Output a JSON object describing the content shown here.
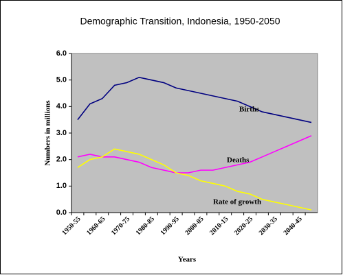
{
  "chart_data": {
    "type": "line",
    "title": "Demographic Transition, Indonesia, 1950-2050",
    "y_label": "Numbers in millions",
    "x_label": "Years",
    "categories": [
      "1950-55",
      null,
      "1960-65",
      null,
      "1970-75",
      null,
      "1980-85",
      null,
      "1990-95",
      null,
      "2000-05",
      null,
      "2010-15",
      null,
      "2020-25",
      null,
      "2030-35",
      null,
      "2040-45",
      null
    ],
    "series": [
      {
        "name": "Births",
        "color": "#000080",
        "values": [
          3.5,
          4.1,
          4.3,
          4.8,
          4.9,
          5.1,
          5.0,
          4.9,
          4.7,
          4.6,
          4.5,
          4.4,
          4.3,
          4.2,
          4.0,
          3.8,
          3.7,
          3.6,
          3.5,
          3.4
        ]
      },
      {
        "name": "Deaths",
        "color": "#ff00ff",
        "values": [
          2.1,
          2.2,
          2.1,
          2.1,
          2.0,
          1.9,
          1.7,
          1.6,
          1.5,
          1.5,
          1.6,
          1.6,
          1.7,
          1.8,
          1.9,
          2.1,
          2.3,
          2.5,
          2.7,
          2.9
        ]
      },
      {
        "name": "Rate of growth",
        "color": "#ffff00",
        "values": [
          1.7,
          2.0,
          2.1,
          2.4,
          2.3,
          2.2,
          2.0,
          1.8,
          1.5,
          1.4,
          1.2,
          1.1,
          1.0,
          0.8,
          0.7,
          0.5,
          0.4,
          0.3,
          0.2,
          0.1
        ]
      }
    ],
    "ylim": [
      0,
      6
    ],
    "yticks": [
      {
        "value": 0,
        "label": "0.0"
      },
      {
        "value": 1,
        "label": "1.0"
      },
      {
        "value": 2,
        "label": "2.0"
      },
      {
        "value": 3,
        "label": "3.0"
      },
      {
        "value": 4,
        "label": "4.0"
      },
      {
        "value": 5,
        "label": "5.0"
      },
      {
        "value": 6,
        "label": "6.0"
      }
    ],
    "grid": false
  }
}
